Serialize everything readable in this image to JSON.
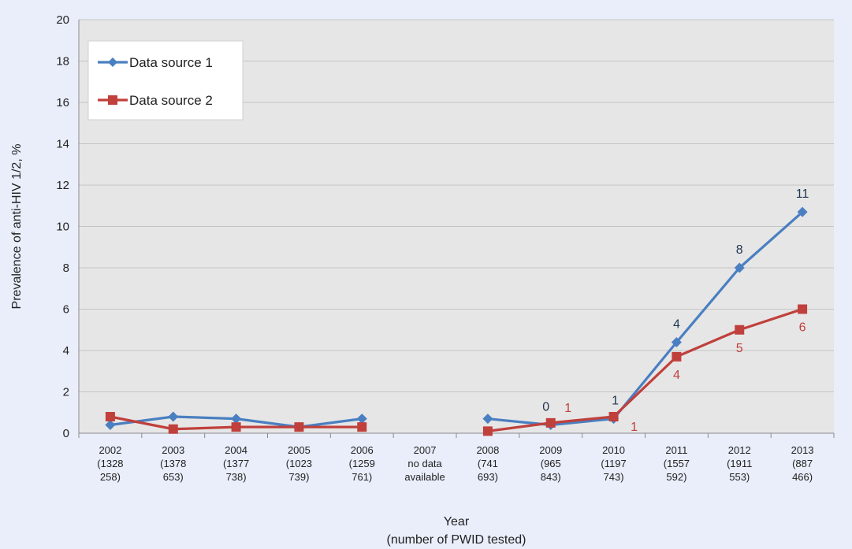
{
  "chart_data": {
    "type": "line",
    "title": "",
    "ylabel": "Prevalence of anti-HIV 1/2, %",
    "xlabel": [
      "Year",
      "(number of PWID tested)"
    ],
    "ylim": [
      0,
      20
    ],
    "yticks": [
      "0",
      "2",
      "4",
      "6",
      "8",
      "10",
      "12",
      "14",
      "16",
      "18",
      "20"
    ],
    "grid": true,
    "legend_position": "top-left",
    "categories": [
      [
        "2002",
        "(1328",
        "258)"
      ],
      [
        "2003",
        "(1378",
        "653)"
      ],
      [
        "2004",
        "(1377",
        "738)"
      ],
      [
        "2005",
        "(1023",
        "739)"
      ],
      [
        "2006",
        "(1259",
        "761)"
      ],
      [
        "2007",
        "no data",
        "available"
      ],
      [
        "2008",
        "(741",
        "693)"
      ],
      [
        "2009",
        "(965",
        "843)"
      ],
      [
        "2010",
        "(1197",
        "743)"
      ],
      [
        "2011",
        "(1557",
        "592)"
      ],
      [
        "2012",
        "(1911",
        "553)"
      ],
      [
        "2013",
        "(887",
        "466)"
      ]
    ],
    "series": [
      {
        "name": "Data source 1",
        "color": "#4a7fc1",
        "marker": "diamond",
        "values": [
          0.4,
          0.8,
          0.7,
          0.3,
          0.7,
          null,
          0.7,
          0.4,
          0.7,
          4.4,
          8.0,
          10.7
        ],
        "labels": [
          null,
          null,
          null,
          null,
          null,
          null,
          null,
          "0",
          "1",
          "4",
          "8",
          "11"
        ]
      },
      {
        "name": "Data source 2",
        "color": "#c0403c",
        "marker": "square",
        "values": [
          0.8,
          0.2,
          0.3,
          0.3,
          0.3,
          null,
          0.1,
          0.5,
          0.8,
          3.7,
          5.0,
          6.0
        ],
        "labels": [
          null,
          null,
          null,
          null,
          null,
          null,
          null,
          "1",
          "1",
          "4",
          "5",
          "6"
        ]
      }
    ]
  }
}
